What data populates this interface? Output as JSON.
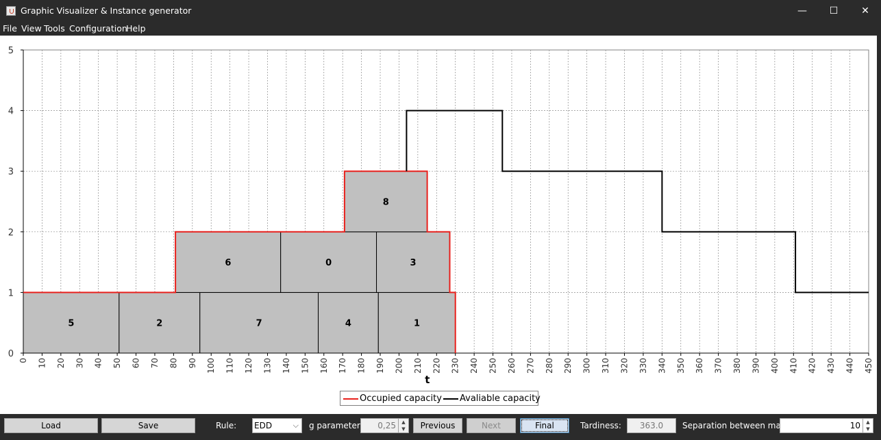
{
  "window": {
    "title": "Graphic Visualizer & Instance generator",
    "minimize": "—",
    "maximize": "☐",
    "close": "✕"
  },
  "menu": [
    "File",
    "View",
    "Tools",
    "Configuration",
    "Help"
  ],
  "chart_data": {
    "type": "step",
    "xlabel": "t",
    "ylabel": "",
    "xlim": [
      0,
      450
    ],
    "ylim": [
      0,
      5
    ],
    "x_ticks": [
      0,
      10,
      20,
      30,
      40,
      50,
      60,
      70,
      80,
      90,
      100,
      110,
      120,
      130,
      140,
      150,
      160,
      170,
      180,
      190,
      200,
      210,
      220,
      230,
      240,
      250,
      260,
      270,
      280,
      290,
      300,
      310,
      320,
      330,
      340,
      350,
      360,
      370,
      380,
      390,
      400,
      410,
      420,
      430,
      440,
      450
    ],
    "y_ticks": [
      0,
      1,
      2,
      3,
      4,
      5
    ],
    "grid": true,
    "legend": "bottom-center",
    "tasks": [
      {
        "label": "5",
        "x0": 0,
        "x1": 51,
        "y0": 0,
        "y1": 1
      },
      {
        "label": "2",
        "x0": 51,
        "x1": 94,
        "y0": 0,
        "y1": 1
      },
      {
        "label": "7",
        "x0": 94,
        "x1": 157,
        "y0": 0,
        "y1": 1
      },
      {
        "label": "4",
        "x0": 157,
        "x1": 189,
        "y0": 0,
        "y1": 1
      },
      {
        "label": "1",
        "x0": 189,
        "x1": 230,
        "y0": 0,
        "y1": 1
      },
      {
        "label": "6",
        "x0": 81,
        "x1": 137,
        "y0": 1,
        "y1": 2
      },
      {
        "label": "0",
        "x0": 137,
        "x1": 188,
        "y0": 1,
        "y1": 2
      },
      {
        "label": "3",
        "x0": 188,
        "x1": 227,
        "y0": 1,
        "y1": 2
      },
      {
        "label": "8",
        "x0": 171,
        "x1": 215,
        "y0": 2,
        "y1": 3
      }
    ],
    "series": [
      {
        "name": "Occupied capacity",
        "color": "#e8201c",
        "points": [
          [
            0,
            1
          ],
          [
            81,
            1
          ],
          [
            81,
            2
          ],
          [
            171,
            2
          ],
          [
            171,
            3
          ],
          [
            215,
            3
          ],
          [
            215,
            2
          ],
          [
            227,
            2
          ],
          [
            227,
            1
          ],
          [
            230,
            1
          ],
          [
            230,
            0
          ]
        ]
      },
      {
        "name": "Avaliable capacity",
        "color": "#000000",
        "points": [
          [
            204,
            3
          ],
          [
            204,
            4
          ],
          [
            255,
            4
          ],
          [
            255,
            3
          ],
          [
            340,
            3
          ],
          [
            340,
            2
          ],
          [
            411,
            2
          ],
          [
            411,
            1
          ],
          [
            450,
            1
          ]
        ]
      }
    ]
  },
  "controls": {
    "load": "Load",
    "save": "Save",
    "rule_label": "Rule:",
    "rule_value": "EDD",
    "g_label": "g parameter:",
    "g_value": "0,25",
    "previous": "Previous",
    "next": "Next",
    "final": "Final",
    "tardiness_label": "Tardiness:",
    "tardiness_value": "363.0",
    "separation_label": "Separation between marks:",
    "separation_value": "10"
  }
}
